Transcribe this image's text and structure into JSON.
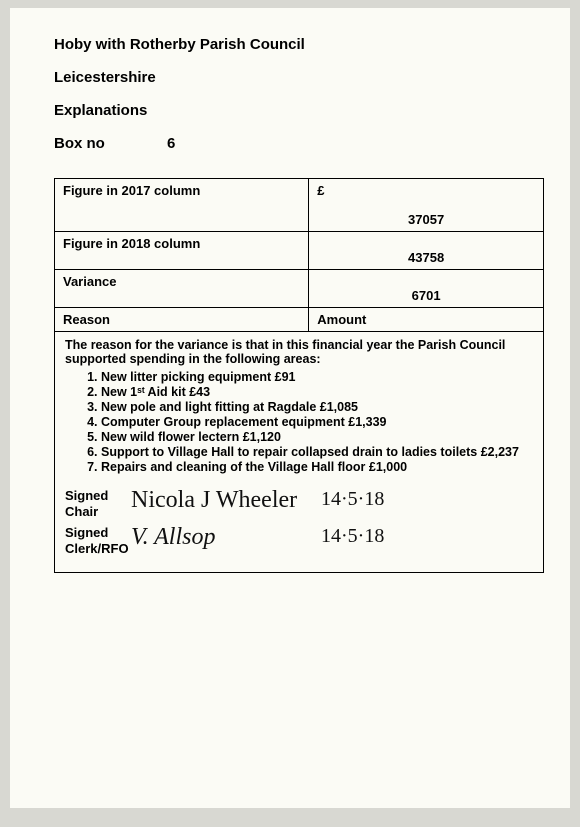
{
  "header": {
    "org": "Hoby with Rotherby Parish Council",
    "region": "Leicestershire",
    "section": "Explanations",
    "box_label": "Box no",
    "box_number": "6"
  },
  "table": {
    "currency": "£",
    "rows": [
      {
        "label": "Figure in 2017 column",
        "value": "37057"
      },
      {
        "label": "Figure in 2018 column",
        "value": "43758"
      },
      {
        "label": "Variance",
        "value": "6701"
      }
    ],
    "reason_label": "Reason",
    "amount_label": "Amount"
  },
  "reason": {
    "intro": "The reason for the variance is that in this financial year the Parish Council supported spending in the following areas:",
    "items": [
      "New litter picking equipment £91",
      "New 1ˢᵗ Aid kit £43",
      "New pole and light fitting at Ragdale £1,085",
      "Computer Group replacement equipment £1,339",
      " New wild flower lectern £1,120",
      "Support to Village Hall to repair collapsed drain to ladies toilets £2,237",
      "Repairs and cleaning of the Village Hall floor £1,000"
    ]
  },
  "signatures": {
    "chair_label": "Signed Chair",
    "chair_signature": "Nicola J Wheeler",
    "chair_date": "14·5·18",
    "clerk_label": "Signed Clerk/RFO",
    "clerk_signature": "V. Allsop",
    "clerk_date": "14·5·18"
  },
  "colors": {
    "page_bg": "#fbfbf5",
    "outer_bg": "#d8d8d2",
    "text": "#000000",
    "border": "#000000"
  }
}
